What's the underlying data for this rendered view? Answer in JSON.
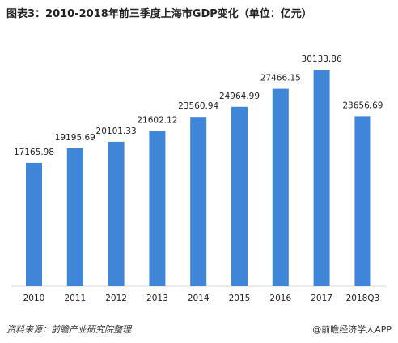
{
  "chart_data": {
    "type": "bar",
    "title": "图表3：2010-2018年前三季度上海市GDP变化（单位：亿元）",
    "categories": [
      "2010",
      "2011",
      "2012",
      "2013",
      "2014",
      "2015",
      "2016",
      "2017",
      "2018Q3"
    ],
    "values": [
      17165.98,
      19195.69,
      20101.33,
      21602.12,
      23560.94,
      24964.99,
      27466.15,
      30133.86,
      23656.69
    ],
    "value_labels": [
      "17165.98",
      "19195.69",
      "20101.33",
      "21602.12",
      "23560.94",
      "24964.99",
      "27466.15",
      "30133.86",
      "23656.69"
    ],
    "ylim": [
      0,
      32000
    ],
    "grid": false,
    "bar_color": "#3f85d8"
  },
  "footer": {
    "source": "资料来源：前瞻产业研究院整理",
    "brand": "@前瞻经济学人APP"
  }
}
